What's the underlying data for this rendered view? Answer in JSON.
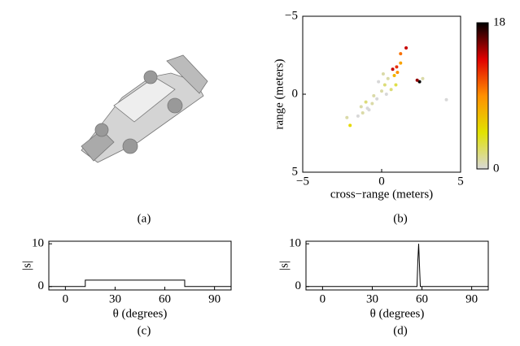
{
  "image_panel": {
    "caption": "(a)"
  },
  "chart_data": [
    {
      "type": "scatter",
      "caption": "(b)",
      "xlabel": "cross−range (meters)",
      "ylabel": "range (meters)",
      "x": [
        1.55,
        1.2,
        1.2,
        0.95,
        0.7,
        1.0,
        0.8,
        2.4,
        2.25,
        2.6,
        4.1,
        -2.0,
        -2.2,
        0.4,
        0.2,
        0.0,
        -0.3,
        -0.6,
        -0.9,
        -1.2,
        -1.5,
        -1.0,
        -0.5,
        0.6,
        0.1,
        -0.2,
        -1.3,
        0.3,
        0.9,
        -0.8
      ],
      "values": [
        -2.97,
        -2.6,
        -2.0,
        -1.75,
        -1.6,
        -1.4,
        -1.2,
        -0.8,
        -0.9,
        -1.0,
        0.35,
        2.0,
        1.5,
        -1.0,
        -0.6,
        -0.2,
        0.3,
        0.6,
        0.9,
        1.2,
        1.4,
        0.5,
        0.1,
        -0.3,
        -1.3,
        -0.8,
        0.8,
        0.0,
        -0.6,
        1.0
      ],
      "color_values": [
        14,
        10,
        8,
        12,
        14,
        9,
        7,
        18,
        15,
        1,
        0,
        5,
        1,
        1,
        2,
        1,
        0,
        1,
        0,
        1,
        0,
        2,
        1,
        2,
        1,
        0,
        1,
        0,
        3,
        0
      ],
      "xlim": [
        -5,
        5
      ],
      "ylim": [
        -5,
        5
      ],
      "y_reversed": true,
      "xticks": [
        {
          "value": -5,
          "label": "−5"
        },
        0,
        5
      ],
      "yticks": [
        {
          "value": -5,
          "label": "−5"
        },
        0,
        5
      ],
      "clim": [
        0,
        18
      ],
      "cticks": [
        0,
        18
      ],
      "colormap": [
        "#d8d8d8",
        "#e2e200",
        "#ff9000",
        "#e00000",
        "#000000"
      ]
    },
    {
      "type": "line",
      "caption": "(c)",
      "xlabel": "θ (degrees)",
      "ylabel": "|s|",
      "color": "#000000",
      "x": [
        -10,
        12,
        12,
        72,
        72,
        100
      ],
      "values": [
        0,
        0,
        1.5,
        1.5,
        0,
        0
      ],
      "xlim": [
        -10,
        100
      ],
      "ylim": [
        -0.8,
        10.6
      ],
      "xticks": [
        0,
        30,
        60,
        90
      ],
      "yticks": [
        0,
        10
      ]
    },
    {
      "type": "line",
      "caption": "(d)",
      "xlabel": "θ (degrees)",
      "ylabel": "|s|",
      "color": "#000000",
      "x": [
        -10,
        57,
        57.5,
        58,
        58.5,
        59,
        100
      ],
      "values": [
        0,
        0,
        6,
        10,
        5,
        0,
        0
      ],
      "xlim": [
        -10,
        100
      ],
      "ylim": [
        -0.8,
        10.6
      ],
      "xticks": [
        0,
        30,
        60,
        90
      ],
      "yticks": [
        0,
        10
      ]
    }
  ]
}
